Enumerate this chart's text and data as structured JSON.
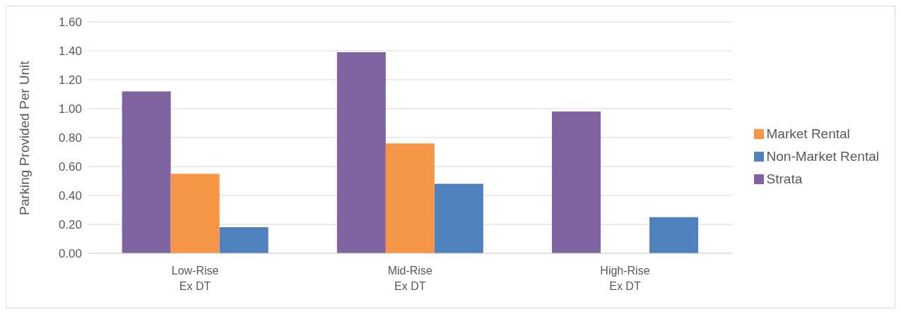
{
  "chart_data": {
    "type": "bar",
    "ylabel": "Parking Provided Per Unit",
    "categories": [
      "Low-Rise\nEx DT",
      "Mid-Rise\nEx DT",
      "High-Rise\nEx DT"
    ],
    "series": [
      {
        "name": "Strata",
        "color": "#8064a2",
        "values": [
          1.12,
          1.39,
          0.98
        ]
      },
      {
        "name": "Market Rental",
        "color": "#f79646",
        "values": [
          0.55,
          0.76,
          null
        ]
      },
      {
        "name": "Non-Market Rental",
        "color": "#4f81bd",
        "values": [
          0.18,
          0.48,
          0.25
        ]
      }
    ],
    "ylim": [
      0,
      1.6
    ],
    "yticks": [
      {
        "value": 0,
        "label": "0.00"
      },
      {
        "value": 0.2,
        "label": "0.20"
      },
      {
        "value": 0.4,
        "label": "0.40"
      },
      {
        "value": 0.6,
        "label": "0.60"
      },
      {
        "value": 0.8,
        "label": "0.80"
      },
      {
        "value": 1,
        "label": "1.00"
      },
      {
        "value": 1.2,
        "label": "1.20"
      },
      {
        "value": 1.4,
        "label": "1.40"
      },
      {
        "value": 1.6,
        "label": "1.60"
      }
    ],
    "grid": "y",
    "legend": "right"
  }
}
